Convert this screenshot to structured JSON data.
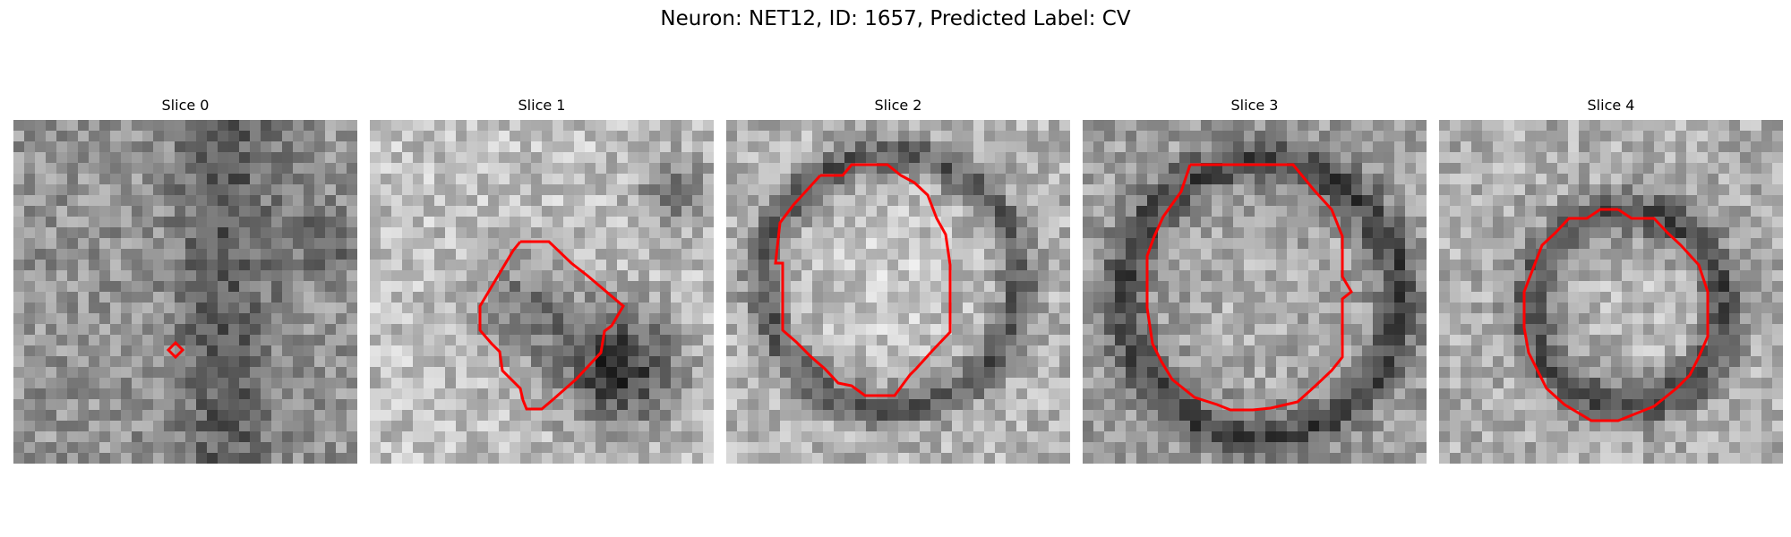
{
  "figure": {
    "title": "Neuron: NET12, ID: 1657, Predicted Label: CV"
  },
  "panels": [
    {
      "title": "Slice 0",
      "contour": "red"
    },
    {
      "title": "Slice 1",
      "contour": "red"
    },
    {
      "title": "Slice 2",
      "contour": "red"
    },
    {
      "title": "Slice 3",
      "contour": "red"
    },
    {
      "title": "Slice 4",
      "contour": "red"
    }
  ],
  "colors": {
    "contour": "#ff0000",
    "background": "#ffffff"
  }
}
